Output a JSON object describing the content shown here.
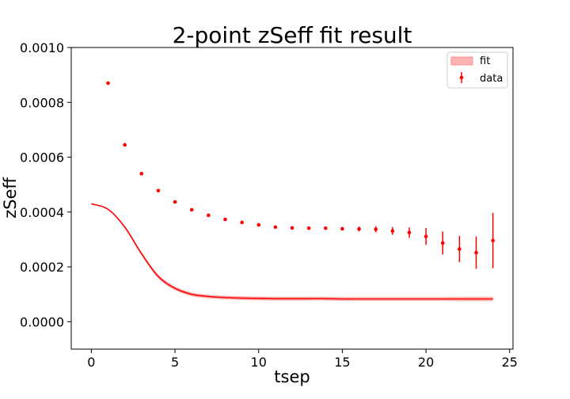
{
  "chart_data": {
    "type": "scatter",
    "title": "2-point zSeff fit result",
    "xlabel": "tsep",
    "ylabel": "zSeff",
    "xlim": [
      -1.2,
      25.2
    ],
    "ylim": [
      -0.0001,
      0.001
    ],
    "xticks": [
      0,
      5,
      10,
      15,
      20,
      25
    ],
    "xtick_labels": [
      "0",
      "5",
      "10",
      "15",
      "20",
      "25"
    ],
    "yticks": [
      0.0,
      0.0002,
      0.0004,
      0.0006,
      0.0008,
      0.001
    ],
    "ytick_labels": [
      "0.0000",
      "0.0002",
      "0.0004",
      "0.0006",
      "0.0008",
      "0.0010"
    ],
    "grid": false,
    "legend_position": "top-right",
    "series": [
      {
        "name": "fit",
        "kind": "line-with-band",
        "color": "#ff0000",
        "band_color": "#ff9999",
        "x": [
          0,
          1,
          2,
          3,
          4,
          5,
          6,
          7,
          8,
          9,
          10,
          11,
          12,
          13,
          14,
          15,
          16,
          17,
          18,
          19,
          20,
          21,
          22,
          23,
          24
        ],
        "y": [
          0.00043,
          0.00041,
          0.000345,
          0.000248,
          0.000165,
          0.000122,
          0.0001,
          9.2e-05,
          8.8e-05,
          8.6e-05,
          8.5e-05,
          8.4e-05,
          8.4e-05,
          8.4e-05,
          8.4e-05,
          8.3e-05,
          8.3e-05,
          8.3e-05,
          8.3e-05,
          8.3e-05,
          8.3e-05,
          8.3e-05,
          8.3e-05,
          8.3e-05,
          8.3e-05
        ],
        "band_halfwidth": [
          0.0,
          2e-06,
          4e-06,
          6e-06,
          7e-06,
          7e-06,
          7e-06,
          7e-06,
          7e-06,
          7e-06,
          7e-06,
          7e-06,
          7e-06,
          7e-06,
          7e-06,
          7e-06,
          7e-06,
          7e-06,
          7e-06,
          7e-06,
          7e-06,
          7e-06,
          8e-06,
          8e-06,
          8e-06
        ]
      },
      {
        "name": "data",
        "kind": "errorbar",
        "color": "#ff0000",
        "x": [
          1,
          2,
          3,
          4,
          5,
          6,
          7,
          8,
          9,
          10,
          11,
          12,
          13,
          14,
          15,
          16,
          17,
          18,
          19,
          20,
          21,
          22,
          23,
          24
        ],
        "y": [
          0.00087,
          0.000645,
          0.00054,
          0.000478,
          0.000437,
          0.000408,
          0.000388,
          0.000373,
          0.000362,
          0.000353,
          0.000345,
          0.000342,
          0.000341,
          0.000341,
          0.000339,
          0.000338,
          0.000337,
          0.000331,
          0.000325,
          0.000311,
          0.000287,
          0.000265,
          0.000252,
          0.000296
        ],
        "yerr": [
          2e-06,
          2e-06,
          2e-06,
          2e-06,
          2e-06,
          2e-06,
          2e-06,
          2e-06,
          2e-06,
          2e-06,
          2e-06,
          3e-06,
          3e-06,
          4e-06,
          6e-06,
          9e-06,
          1.1e-05,
          1.4e-05,
          1.9e-05,
          3.1e-05,
          4.2e-05,
          4.8e-05,
          5.9e-05,
          0.000101
        ]
      }
    ]
  }
}
